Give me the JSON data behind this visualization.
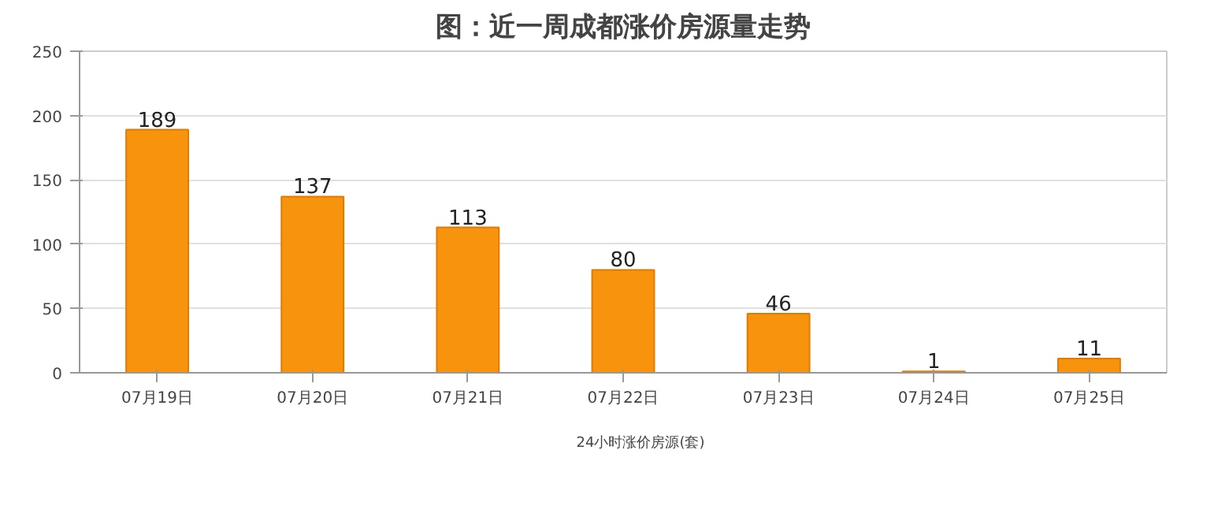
{
  "chart_data": {
    "type": "bar",
    "title": "图：近一周成都涨价房源量走势",
    "categories": [
      "07月19日",
      "07月20日",
      "07月21日",
      "07月22日",
      "07月23日",
      "07月24日",
      "07月25日"
    ],
    "series": [
      {
        "name": "24小时涨价房源(套)",
        "color": "#f7930c",
        "values": [
          189,
          137,
          113,
          80,
          46,
          1,
          11
        ]
      }
    ],
    "ylim": [
      0,
      250
    ],
    "yticks": [
      0,
      50,
      100,
      150,
      200,
      250
    ],
    "grid": "y",
    "legend": "bottom",
    "data_labels": true
  }
}
